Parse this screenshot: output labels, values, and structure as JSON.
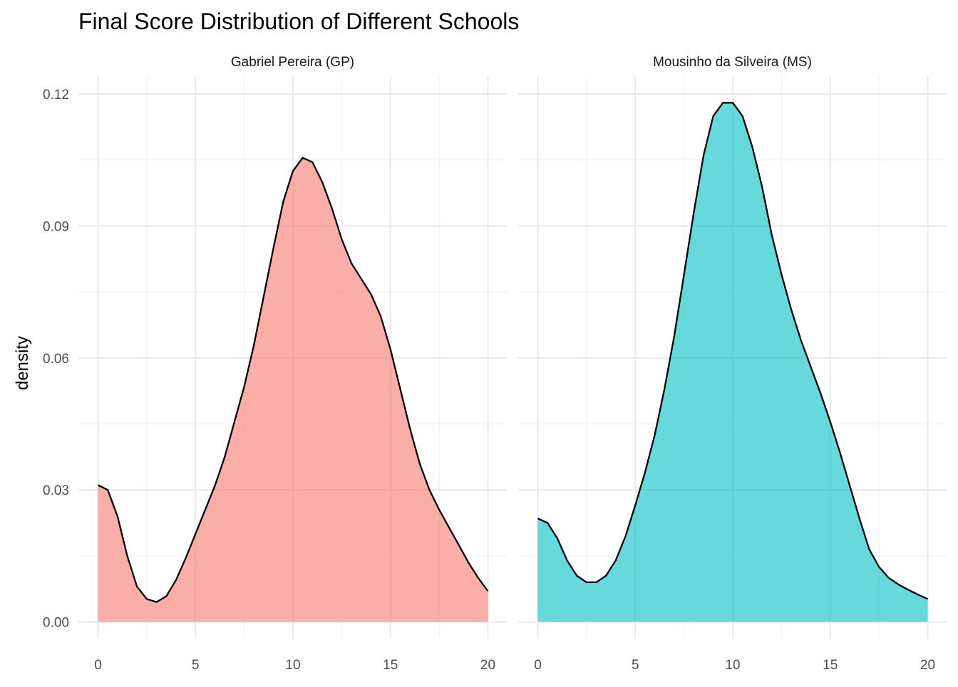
{
  "chart_data": {
    "type": "area",
    "title": "Final Score Distribution of Different Schools",
    "xlabel": "",
    "ylabel": "density",
    "xlim": [
      0,
      20
    ],
    "ylim": [
      0,
      0.12
    ],
    "x_ticks": [
      0,
      5,
      10,
      15,
      20
    ],
    "y_ticks": [
      0.0,
      0.03,
      0.06,
      0.09,
      0.12
    ],
    "y_tick_labels": [
      "0.00",
      "0.03",
      "0.06",
      "0.09",
      "0.12"
    ],
    "grid": true,
    "colors": {
      "gp_fill": "#F8766D",
      "ms_fill": "#00BFC4",
      "line": "#000000",
      "grid_major": "#EBEBEB",
      "grid_minor": "#F2F2F2",
      "text": "#4D4D4D"
    },
    "panels": [
      {
        "label": "Gabriel Pereira (GP)",
        "fill": "#F8766D",
        "x": [
          0,
          0.5,
          1,
          1.5,
          2,
          2.5,
          3,
          3.5,
          4,
          4.5,
          5,
          5.5,
          6,
          6.5,
          7,
          7.5,
          8,
          8.5,
          9,
          9.5,
          10,
          10.5,
          11,
          11.5,
          12,
          12.5,
          13,
          13.5,
          14,
          14.5,
          15,
          15.5,
          16,
          16.5,
          17,
          17.5,
          18,
          18.5,
          19,
          19.5,
          20
        ],
        "y": [
          0.0311,
          0.03,
          0.024,
          0.015,
          0.008,
          0.0052,
          0.0045,
          0.0058,
          0.0095,
          0.0145,
          0.02,
          0.0255,
          0.031,
          0.0375,
          0.0455,
          0.0535,
          0.063,
          0.074,
          0.085,
          0.0955,
          0.1025,
          0.1055,
          0.1045,
          0.1,
          0.094,
          0.087,
          0.0815,
          0.078,
          0.0745,
          0.0695,
          0.062,
          0.053,
          0.044,
          0.036,
          0.03,
          0.0255,
          0.0215,
          0.0175,
          0.0135,
          0.01,
          0.007
        ]
      },
      {
        "label": "Mousinho da Silveira (MS)",
        "fill": "#00BFC4",
        "x": [
          0,
          0.5,
          1,
          1.5,
          2,
          2.5,
          3,
          3.5,
          4,
          4.5,
          5,
          5.5,
          6,
          6.5,
          7,
          7.5,
          8,
          8.5,
          9,
          9.5,
          10,
          10.5,
          11,
          11.5,
          12,
          12.5,
          13,
          13.5,
          14,
          14.5,
          15,
          15.5,
          16,
          16.5,
          17,
          17.5,
          18,
          18.5,
          19,
          19.5,
          20
        ],
        "y": [
          0.0235,
          0.0225,
          0.019,
          0.014,
          0.0105,
          0.009,
          0.009,
          0.0105,
          0.014,
          0.0195,
          0.0265,
          0.034,
          0.0425,
          0.053,
          0.065,
          0.079,
          0.093,
          0.106,
          0.115,
          0.118,
          0.118,
          0.115,
          0.108,
          0.099,
          0.088,
          0.079,
          0.071,
          0.064,
          0.058,
          0.052,
          0.0455,
          0.0385,
          0.031,
          0.0235,
          0.0165,
          0.0125,
          0.01,
          0.0085,
          0.0073,
          0.0062,
          0.0052
        ]
      }
    ]
  }
}
